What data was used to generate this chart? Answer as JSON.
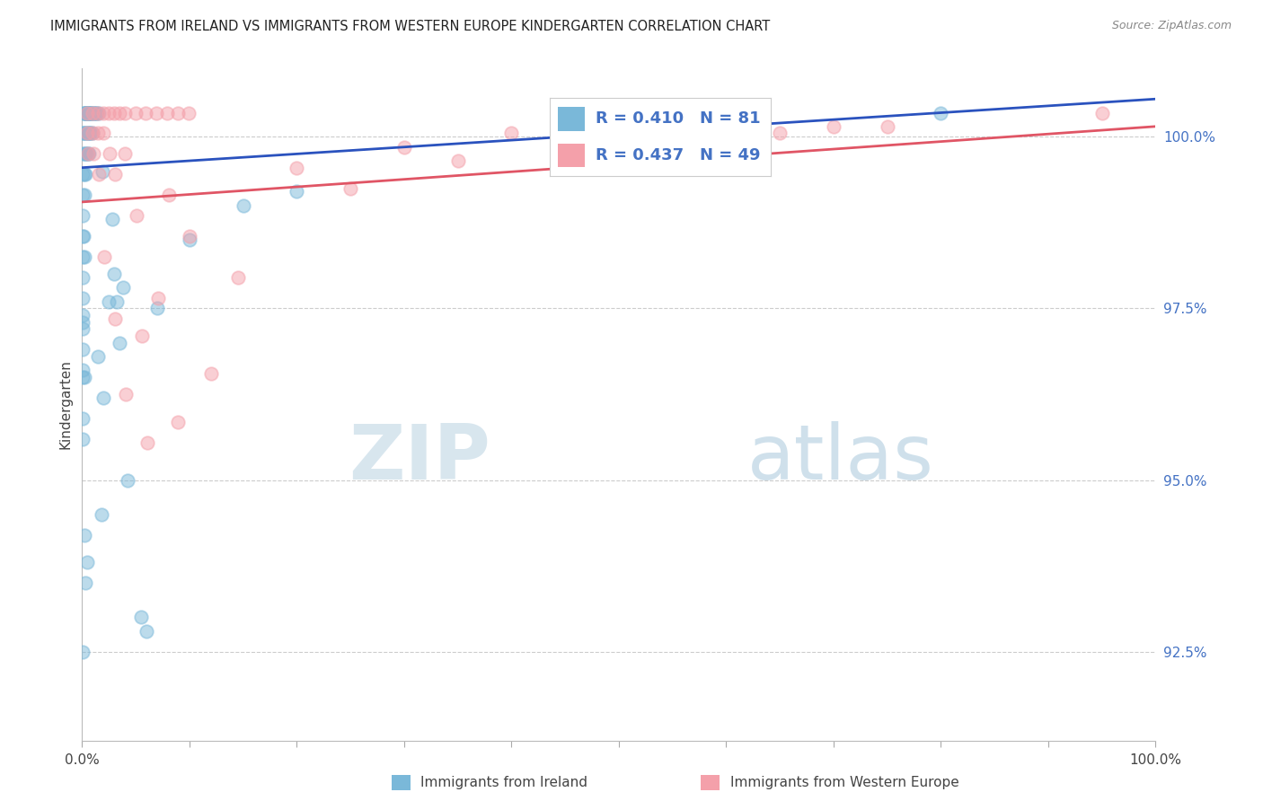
{
  "title": "IMMIGRANTS FROM IRELAND VS IMMIGRANTS FROM WESTERN EUROPE KINDERGARTEN CORRELATION CHART",
  "source": "Source: ZipAtlas.com",
  "ylabel": "Kindergarten",
  "yticks": [
    92.5,
    95.0,
    97.5,
    100.0
  ],
  "ytick_labels": [
    "92.5%",
    "95.0%",
    "97.5%",
    "100.0%"
  ],
  "xmin": 0.0,
  "xmax": 100.0,
  "ymin": 91.2,
  "ymax": 101.0,
  "series1_label": "Immigrants from Ireland",
  "series1_color": "#7ab8d9",
  "series1_R": 0.41,
  "series1_N": 81,
  "series2_label": "Immigrants from Western Europe",
  "series2_color": "#f4a0aa",
  "series2_R": 0.437,
  "series2_N": 49,
  "legend_text_color": "#4472c4",
  "watermark_zip": "ZIP",
  "watermark_atlas": "atlas",
  "blue_trend_x": [
    0.0,
    100.0
  ],
  "blue_trend_y": [
    99.55,
    100.55
  ],
  "pink_trend_x": [
    0.0,
    100.0
  ],
  "pink_trend_y": [
    99.05,
    100.15
  ],
  "blue_x": [
    0.12,
    0.18,
    0.22,
    0.28,
    0.32,
    0.38,
    0.42,
    0.48,
    0.52,
    0.58,
    0.62,
    0.68,
    0.72,
    0.78,
    0.82,
    0.92,
    1.02,
    1.12,
    1.18,
    1.28,
    1.42,
    1.55,
    0.08,
    0.14,
    0.24,
    0.34,
    0.44,
    0.54,
    0.64,
    0.74,
    0.84,
    0.94,
    0.08,
    0.18,
    0.28,
    0.38,
    0.52,
    0.62,
    0.08,
    0.18,
    0.32,
    0.08,
    0.22,
    0.08,
    0.08,
    0.15,
    0.08,
    0.22,
    0.08,
    2.5,
    3.2,
    0.08,
    3.5,
    1.5,
    0.08,
    0.18,
    2.0,
    0.08,
    0.08,
    4.2,
    1.8,
    0.22,
    0.5,
    0.3,
    5.5,
    6.0,
    80.0,
    0.08,
    3.0,
    7.0,
    10.0,
    15.0,
    20.0,
    2.8,
    1.9,
    3.8,
    0.08,
    0.08,
    0.08,
    0.08,
    0.08
  ],
  "blue_y": [
    100.35,
    100.35,
    100.35,
    100.35,
    100.35,
    100.35,
    100.35,
    100.35,
    100.35,
    100.35,
    100.35,
    100.35,
    100.35,
    100.35,
    100.35,
    100.35,
    100.35,
    100.35,
    100.35,
    100.35,
    100.35,
    100.35,
    100.05,
    100.05,
    100.05,
    100.05,
    100.05,
    100.05,
    100.05,
    100.05,
    100.05,
    100.05,
    99.75,
    99.75,
    99.75,
    99.75,
    99.75,
    99.75,
    99.45,
    99.45,
    99.45,
    99.15,
    99.15,
    98.85,
    98.55,
    98.55,
    98.25,
    98.25,
    97.95,
    97.6,
    97.6,
    97.3,
    97.0,
    96.8,
    96.5,
    96.5,
    96.2,
    95.9,
    95.6,
    95.0,
    94.5,
    94.2,
    93.8,
    93.5,
    93.0,
    92.8,
    100.35,
    92.5,
    98.0,
    97.5,
    98.5,
    99.0,
    99.2,
    98.8,
    99.5,
    97.8,
    97.65,
    97.4,
    97.2,
    96.9,
    96.6
  ],
  "pink_x": [
    0.45,
    0.95,
    1.45,
    1.95,
    2.45,
    2.95,
    3.45,
    3.95,
    4.95,
    5.95,
    6.95,
    7.95,
    8.95,
    9.95,
    0.45,
    0.95,
    1.45,
    1.95,
    0.55,
    1.05,
    2.55,
    3.95,
    1.55,
    3.05,
    8.05,
    5.05,
    10.05,
    2.05,
    14.5,
    7.05,
    3.05,
    12.05,
    4.05,
    8.95,
    6.05,
    95.0,
    50.0,
    20.0,
    30.0,
    40.0,
    60.0,
    70.0,
    25.0,
    35.0,
    45.0,
    55.0,
    65.0,
    75.0,
    5.6
  ],
  "pink_y": [
    100.35,
    100.35,
    100.35,
    100.35,
    100.35,
    100.35,
    100.35,
    100.35,
    100.35,
    100.35,
    100.35,
    100.35,
    100.35,
    100.35,
    100.05,
    100.05,
    100.05,
    100.05,
    99.75,
    99.75,
    99.75,
    99.75,
    99.45,
    99.45,
    99.15,
    98.85,
    98.55,
    98.25,
    97.95,
    97.65,
    97.35,
    96.55,
    96.25,
    95.85,
    95.55,
    100.35,
    100.35,
    99.55,
    99.85,
    100.05,
    100.15,
    100.15,
    99.25,
    99.65,
    99.85,
    100.05,
    100.05,
    100.15,
    97.1
  ]
}
